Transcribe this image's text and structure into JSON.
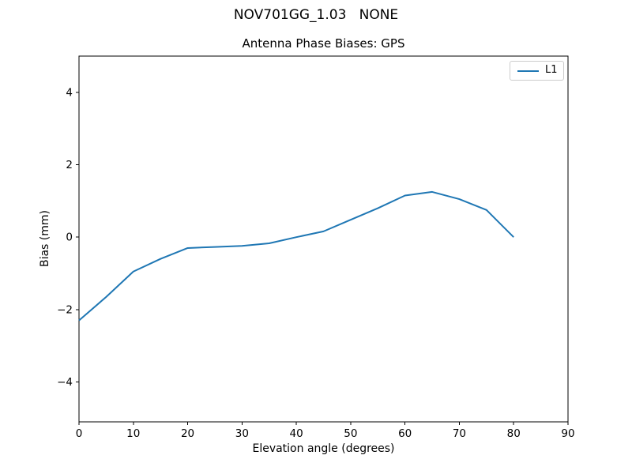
{
  "figure": {
    "suptitle": "NOV701GG_1.03   NONE"
  },
  "chart_data": {
    "type": "line",
    "title": "Antenna Phase Biases: GPS",
    "xlabel": "Elevation angle (degrees)",
    "ylabel": "Bias (mm)",
    "xlim": [
      0,
      90
    ],
    "ylim": [
      -5.1,
      5.0
    ],
    "x_ticks": [
      0,
      10,
      20,
      30,
      40,
      50,
      60,
      70,
      80,
      90
    ],
    "y_ticks": [
      -4,
      -2,
      0,
      2,
      4
    ],
    "grid": false,
    "legend_position": "upper right",
    "series": [
      {
        "name": "L1",
        "color": "#1f77b4",
        "x": [
          0,
          5,
          10,
          15,
          20,
          25,
          30,
          35,
          40,
          45,
          50,
          55,
          60,
          65,
          70,
          75,
          80
        ],
        "y": [
          -2.3,
          -1.65,
          -0.95,
          -0.6,
          -0.3,
          -0.27,
          -0.24,
          -0.17,
          0.0,
          0.16,
          0.48,
          0.8,
          1.15,
          1.25,
          1.05,
          0.75,
          0.0
        ]
      }
    ]
  }
}
